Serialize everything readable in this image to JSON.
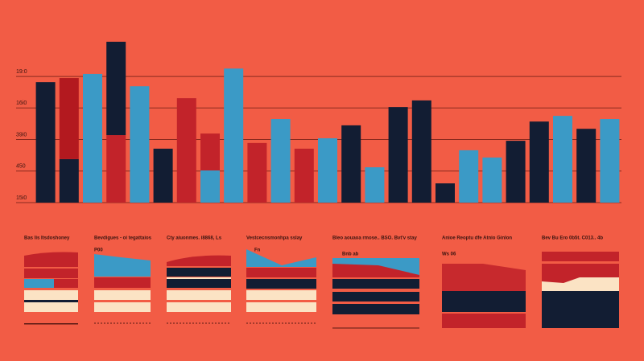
{
  "chart_data": {
    "type": "bar",
    "categories": [
      null,
      null,
      null,
      null,
      null,
      null,
      null,
      null,
      null,
      null,
      null,
      null,
      null,
      null,
      null,
      null,
      null,
      null,
      null,
      null,
      null,
      null,
      null,
      null,
      null
    ],
    "series": [
      {
        "colors": [
          "#121d33",
          "#121d33",
          "#3b9ac6",
          "#c2232a",
          "#3b9ac6",
          "#121d33",
          "#c2232a",
          "#3b9ac6",
          "#3b9ac6",
          "#c2232a",
          "#3b9ac6",
          "#c2232a",
          "#3b9ac6",
          "#121d33",
          "#3b9ac6",
          "#121d33",
          "#121d33",
          "#121d33",
          "#3b9ac6",
          "#3b9ac6",
          "#121d33",
          "#121d33",
          "#3b9ac6",
          "#121d33",
          "#3b9ac6"
        ],
        "values": [
          3.82,
          1.38,
          4.08,
          2.14,
          3.69,
          1.71,
          3.31,
          1.02,
          4.25,
          1.89,
          2.65,
          1.71,
          2.04,
          2.45,
          1.12,
          3.03,
          3.24,
          0.61,
          1.66,
          1.43,
          1.96,
          2.57,
          2.75,
          2.34,
          2.65
        ]
      },
      {
        "colors": [
          null,
          "#b3191f",
          null,
          "#121d33",
          null,
          null,
          null,
          "#c2232a",
          null,
          null,
          null,
          null,
          null,
          null,
          null,
          null,
          null,
          null,
          null,
          null,
          null,
          null,
          null,
          null,
          null
        ],
        "values": [
          null,
          2.57,
          null,
          2.96,
          null,
          null,
          null,
          1.17,
          null,
          null,
          null,
          null,
          null,
          null,
          null,
          null,
          null,
          null,
          null,
          null,
          null,
          null,
          null,
          null,
          null
        ]
      }
    ],
    "stacked": true,
    "ylim": [
      0,
      5.2
    ],
    "yticks": [
      {
        "value": 0,
        "label": "15i0"
      },
      {
        "value": 1,
        "label": "450"
      },
      {
        "value": 2,
        "label": "39i0"
      },
      {
        "value": 3,
        "label": "16i0"
      },
      {
        "value": 4,
        "label": "19:0"
      }
    ],
    "grid": true
  },
  "panels": [
    {
      "title": "Bas lis Itsdoshoney"
    },
    {
      "title": "Bevdigues - oi tegattaios",
      "label": "P00"
    },
    {
      "title": "Cty aiuonmes. i8868, Ls"
    },
    {
      "title": "Vestcecnsmonhpa sslay",
      "label": "Fn"
    },
    {
      "title": "Bleo aouaoa rmose.. BSO. Bvt'v stay",
      "label": "Bnb ab"
    },
    {
      "title": "Anioe Reoptu dfe Atnio Ginlon",
      "label": "Ws 06"
    },
    {
      "title": "Bev Bu Ero 0b5t. C013.. 4b"
    }
  ]
}
